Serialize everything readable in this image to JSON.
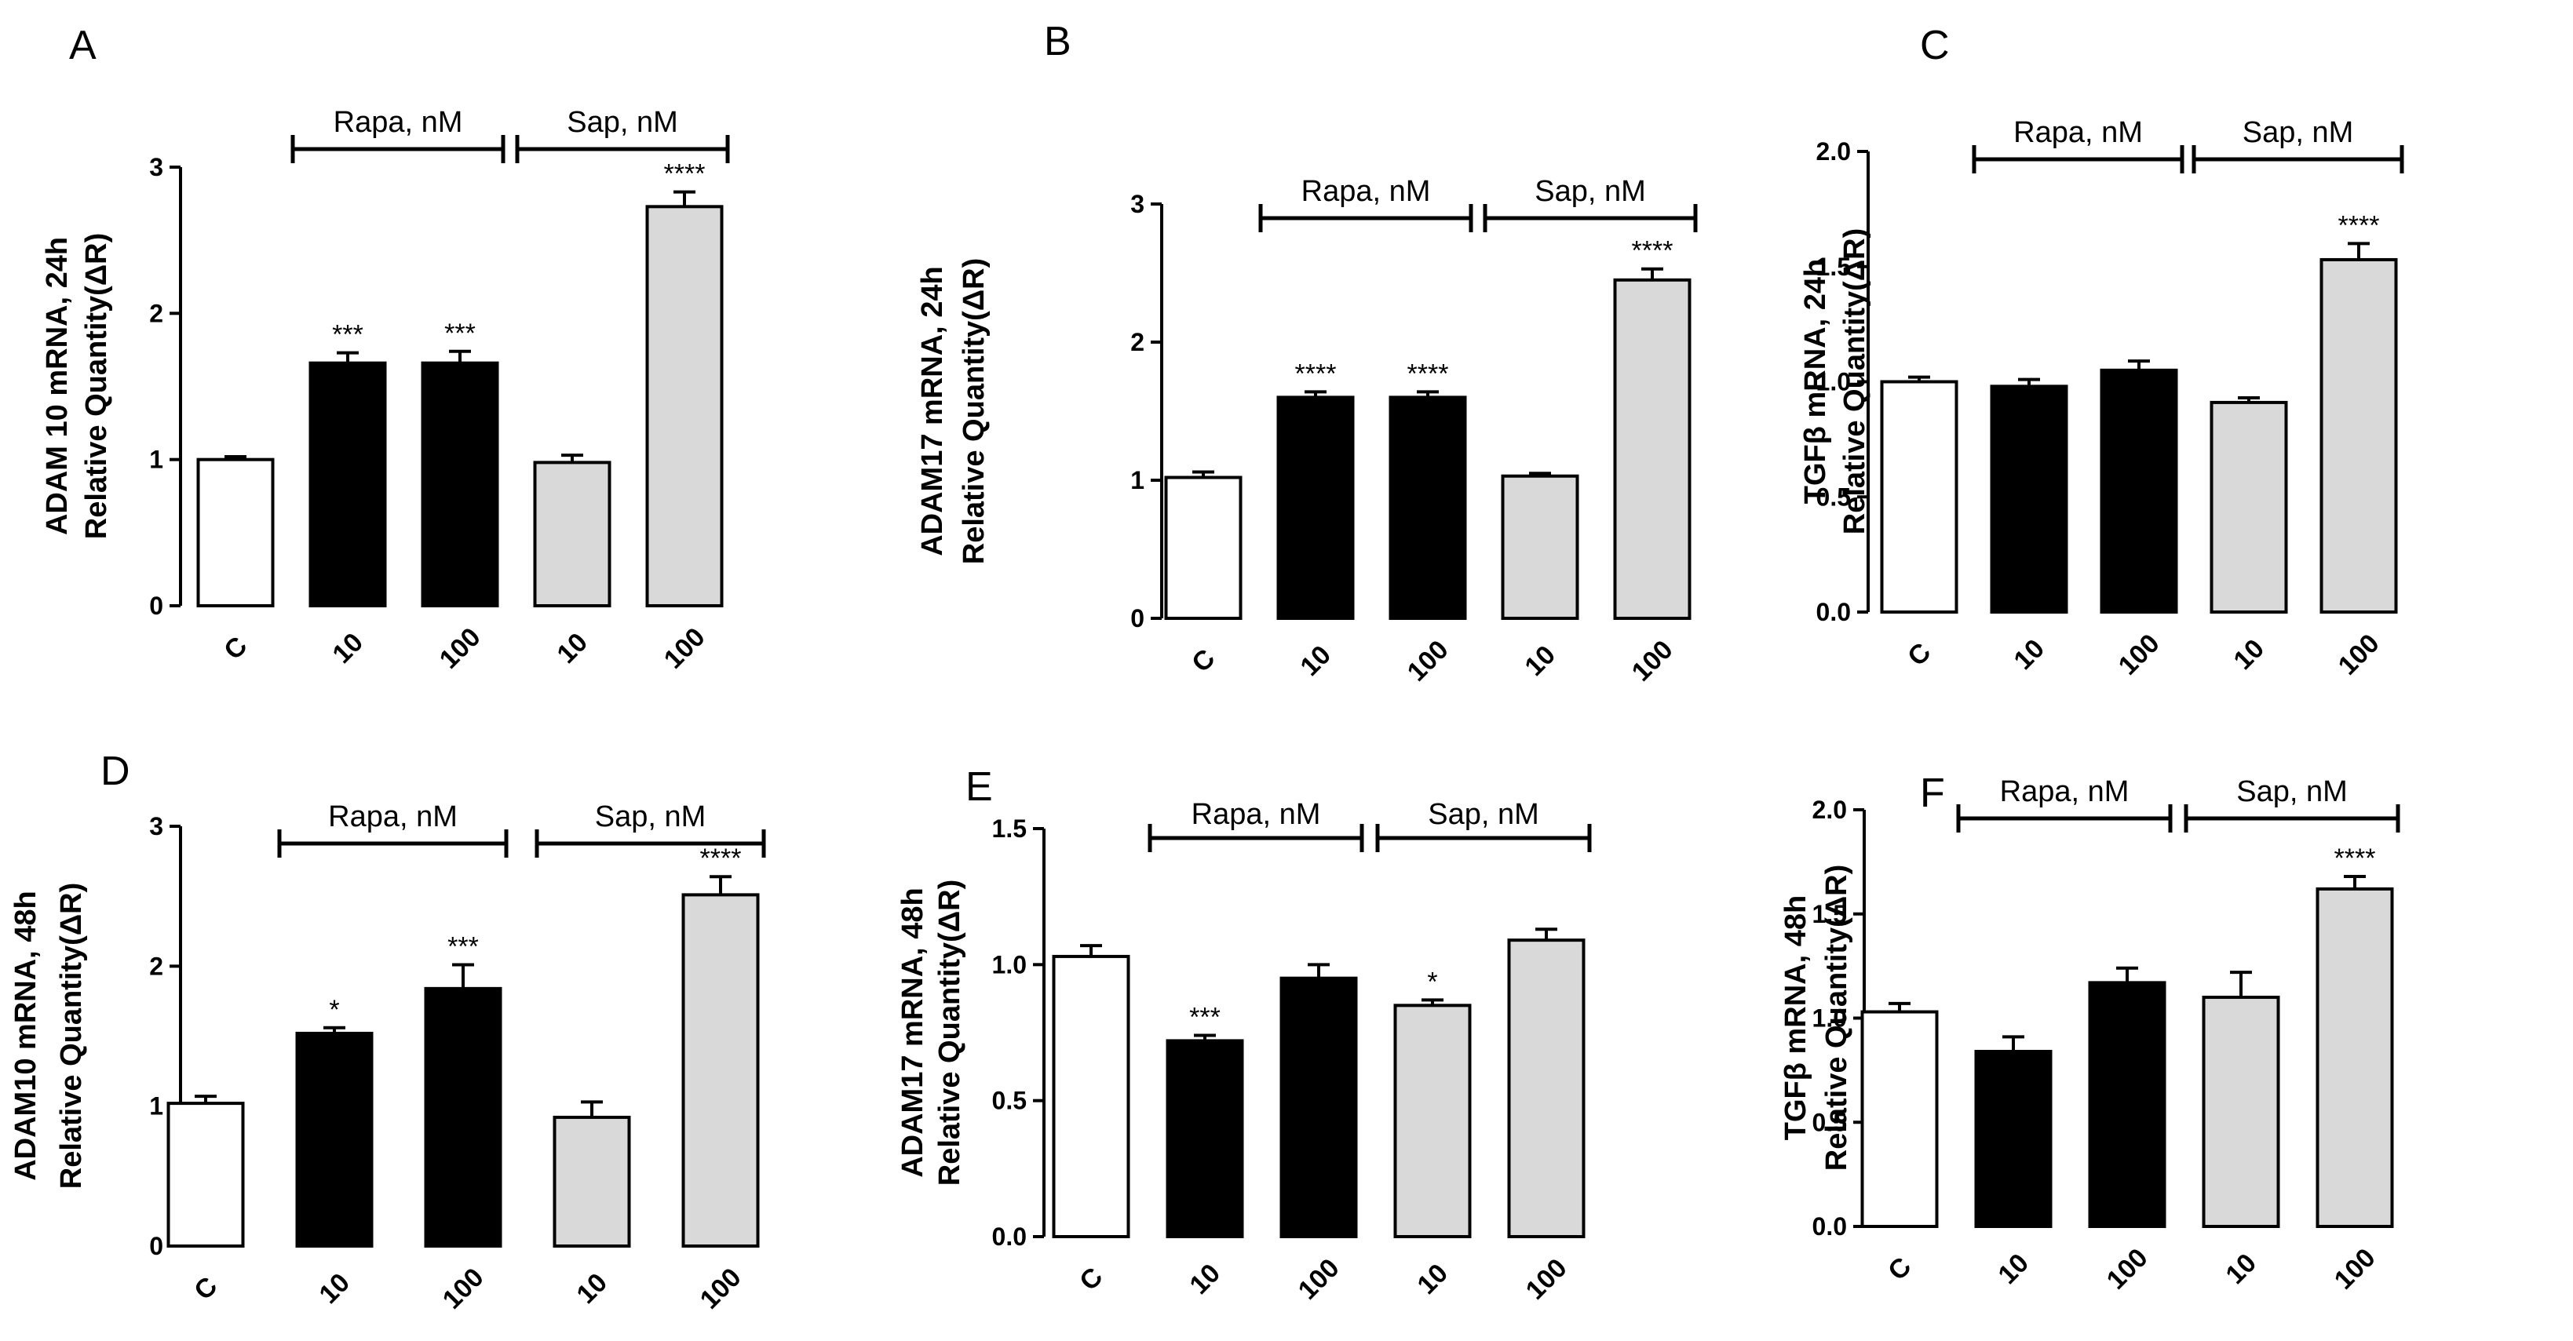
{
  "colors": {
    "control": "#ffffff",
    "rapa": "#000000",
    "sap": "#d9d9d9",
    "outline": "#000000"
  },
  "chart_data": [
    {
      "panel": "A",
      "type": "bar",
      "ylabel": [
        "ADAM 10 mRNA, 24h",
        "Relative Quantity(ΔR)"
      ],
      "ylim": [
        0,
        3
      ],
      "ticks": [
        0,
        1,
        2,
        3
      ],
      "tick_labels": [
        "0",
        "1",
        "2",
        "3"
      ],
      "categories": [
        "C",
        "10",
        "100",
        "10",
        "100"
      ],
      "values": [
        1.0,
        1.66,
        1.66,
        0.98,
        2.73
      ],
      "errors": [
        0.02,
        0.07,
        0.08,
        0.05,
        0.1
      ],
      "groups": [
        "control",
        "rapa",
        "rapa",
        "sap",
        "sap"
      ],
      "significance": [
        "",
        "***",
        "***",
        "",
        "****"
      ],
      "brackets": [
        {
          "label": "Rapa, nM",
          "from": 1,
          "to": 2
        },
        {
          "label": "Sap, nM",
          "from": 3,
          "to": 4
        }
      ]
    },
    {
      "panel": "B",
      "type": "bar",
      "ylabel": [
        "ADAM17 mRNA, 24h",
        "Relative Quantity(ΔR)"
      ],
      "ylim": [
        0,
        3
      ],
      "ticks": [
        0,
        1,
        2,
        3
      ],
      "tick_labels": [
        "0",
        "1",
        "2",
        "3"
      ],
      "categories": [
        "C",
        "10",
        "100",
        "10",
        "100"
      ],
      "values": [
        1.02,
        1.6,
        1.6,
        1.03,
        2.45
      ],
      "errors": [
        0.04,
        0.04,
        0.04,
        0.02,
        0.08
      ],
      "groups": [
        "control",
        "rapa",
        "rapa",
        "sap",
        "sap"
      ],
      "significance": [
        "",
        "****",
        "****",
        "",
        "****"
      ],
      "brackets": [
        {
          "label": "Rapa, nM",
          "from": 1,
          "to": 2
        },
        {
          "label": "Sap, nM",
          "from": 3,
          "to": 4
        }
      ]
    },
    {
      "panel": "C",
      "type": "bar",
      "ylabel": [
        "TGFβ mRNA, 24h",
        "Relative Quantity(ΔR)"
      ],
      "ylim": [
        0,
        2.0
      ],
      "ticks": [
        0,
        0.5,
        1.0,
        1.5,
        2.0
      ],
      "tick_labels": [
        "0.0",
        "0.5",
        "1.0",
        "1.5",
        "2.0"
      ],
      "categories": [
        "C",
        "10",
        "100",
        "10",
        "100"
      ],
      "values": [
        1.0,
        0.98,
        1.05,
        0.91,
        1.53
      ],
      "errors": [
        0.02,
        0.03,
        0.04,
        0.02,
        0.07
      ],
      "groups": [
        "control",
        "rapa",
        "rapa",
        "sap",
        "sap"
      ],
      "significance": [
        "",
        "",
        "",
        "",
        "****"
      ],
      "brackets": [
        {
          "label": "Rapa, nM",
          "from": 1,
          "to": 2
        },
        {
          "label": "Sap, nM",
          "from": 3,
          "to": 4
        }
      ]
    },
    {
      "panel": "D",
      "type": "bar",
      "ylabel": [
        "ADAM10 mRNA, 48h",
        "Relative Quantity(ΔR)"
      ],
      "ylim": [
        0,
        3
      ],
      "ticks": [
        0,
        1,
        2,
        3
      ],
      "tick_labels": [
        "0",
        "1",
        "2",
        "3"
      ],
      "categories": [
        "C",
        "10",
        "100",
        "10",
        "100"
      ],
      "values": [
        1.02,
        1.52,
        1.84,
        0.92,
        2.51
      ],
      "errors": [
        0.05,
        0.04,
        0.17,
        0.11,
        0.13
      ],
      "groups": [
        "control",
        "rapa",
        "rapa",
        "sap",
        "sap"
      ],
      "significance": [
        "",
        "*",
        "***",
        "",
        "****"
      ],
      "brackets": [
        {
          "label": "Rapa, nM",
          "from": 1,
          "to": 2
        },
        {
          "label": "Sap, nM",
          "from": 3,
          "to": 4
        }
      ]
    },
    {
      "panel": "E",
      "type": "bar",
      "ylabel": [
        "ADAM17 mRNA, 48h",
        "Relative Quantity(ΔR)"
      ],
      "ylim": [
        0,
        1.5
      ],
      "ticks": [
        0,
        0.5,
        1.0,
        1.5
      ],
      "tick_labels": [
        "0.0",
        "0.5",
        "1.0",
        "1.5"
      ],
      "categories": [
        "C",
        "10",
        "100",
        "10",
        "100"
      ],
      "values": [
        1.03,
        0.72,
        0.95,
        0.85,
        1.09
      ],
      "errors": [
        0.04,
        0.02,
        0.05,
        0.02,
        0.04
      ],
      "groups": [
        "control",
        "rapa",
        "rapa",
        "sap",
        "sap"
      ],
      "significance": [
        "",
        "***",
        "",
        "*",
        ""
      ],
      "brackets": [
        {
          "label": "Rapa, nM",
          "from": 1,
          "to": 2
        },
        {
          "label": "Sap, nM",
          "from": 3,
          "to": 4
        }
      ]
    },
    {
      "panel": "F",
      "type": "bar",
      "ylabel": [
        "TGFβ mRNA, 48h",
        "Relative Quantity(ΔR)"
      ],
      "ylim": [
        0,
        2.0
      ],
      "ticks": [
        0,
        0.5,
        1.0,
        1.5,
        2.0
      ],
      "tick_labels": [
        "0.0",
        "0.5",
        "1.0",
        "1.5",
        "2.0"
      ],
      "categories": [
        "C",
        "10",
        "100",
        "10",
        "100"
      ],
      "values": [
        1.03,
        0.84,
        1.17,
        1.1,
        1.62
      ],
      "errors": [
        0.04,
        0.07,
        0.07,
        0.12,
        0.06
      ],
      "groups": [
        "control",
        "rapa",
        "rapa",
        "sap",
        "sap"
      ],
      "significance": [
        "",
        "",
        "",
        "",
        "****"
      ],
      "brackets": [
        {
          "label": "Rapa, nM",
          "from": 1,
          "to": 2
        },
        {
          "label": "Sap, nM",
          "from": 3,
          "to": 4
        }
      ]
    }
  ]
}
